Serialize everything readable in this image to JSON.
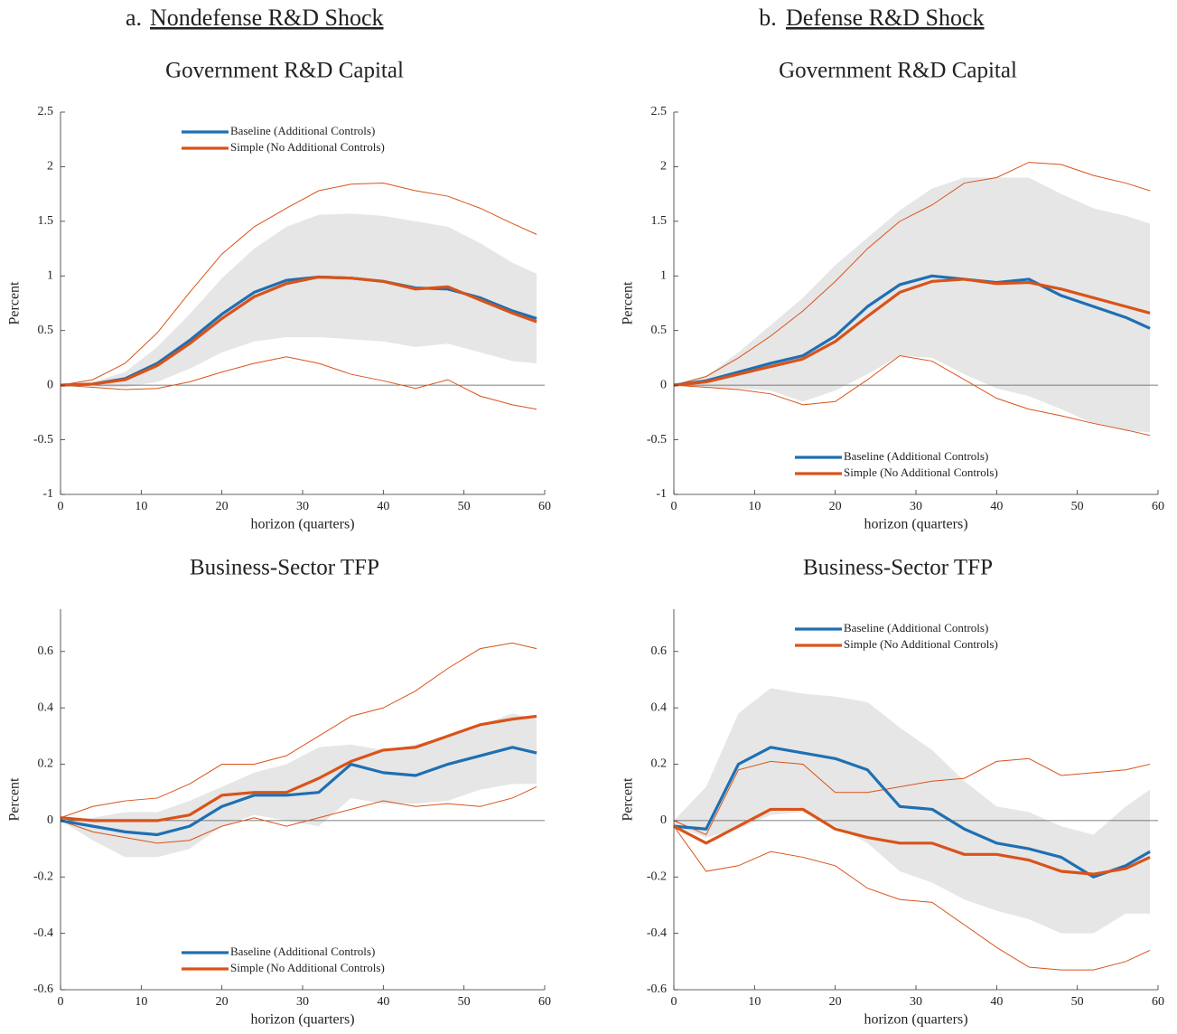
{
  "columns": [
    {
      "letter": "a.",
      "title": "Nondefense R&D Shock"
    },
    {
      "letter": "b.",
      "title": "Defense R&D Shock"
    }
  ],
  "chart_data": [
    {
      "type": "line",
      "title": "Government R&D Capital",
      "xlabel": "horizon (quarters)",
      "ylabel": "Percent",
      "xlim": [
        0,
        60
      ],
      "xticks": [
        0,
        10,
        20,
        30,
        40,
        50,
        60
      ],
      "ylim": [
        -1,
        2.5
      ],
      "yticks": [
        -1,
        -0.5,
        0,
        0.5,
        1,
        1.5,
        2,
        2.5
      ],
      "hline": 0,
      "legend": "top",
      "x": [
        0,
        4,
        8,
        12,
        16,
        20,
        24,
        28,
        32,
        36,
        40,
        44,
        48,
        52,
        56,
        59
      ],
      "series": [
        {
          "name": "Baseline (Additional Controls)",
          "color": "#1f6fb2",
          "values": [
            0,
            0.01,
            0.06,
            0.2,
            0.41,
            0.65,
            0.85,
            0.96,
            0.99,
            0.98,
            0.95,
            0.89,
            0.88,
            0.8,
            0.68,
            0.61
          ]
        },
        {
          "name": "Simple (No Additional Controls)",
          "color": "#d95319",
          "values": [
            0,
            0.01,
            0.05,
            0.18,
            0.38,
            0.61,
            0.81,
            0.93,
            0.99,
            0.98,
            0.95,
            0.88,
            0.9,
            0.78,
            0.66,
            0.58
          ]
        }
      ],
      "band": {
        "color": "#e6e6e6",
        "upper": [
          0,
          0.03,
          0.12,
          0.35,
          0.65,
          0.98,
          1.25,
          1.45,
          1.56,
          1.57,
          1.55,
          1.5,
          1.45,
          1.3,
          1.12,
          1.02
        ],
        "lower": [
          0,
          -0.01,
          -0.02,
          0.03,
          0.15,
          0.3,
          0.4,
          0.44,
          0.44,
          0.42,
          0.4,
          0.35,
          0.38,
          0.3,
          0.22,
          0.2
        ]
      },
      "ci": {
        "color": "#d95319",
        "upper": [
          0,
          0.05,
          0.2,
          0.48,
          0.85,
          1.2,
          1.45,
          1.62,
          1.78,
          1.84,
          1.85,
          1.78,
          1.73,
          1.62,
          1.48,
          1.38
        ],
        "lower": [
          0,
          -0.02,
          -0.04,
          -0.03,
          0.03,
          0.12,
          0.2,
          0.26,
          0.2,
          0.1,
          0.04,
          -0.03,
          0.05,
          -0.1,
          -0.18,
          -0.22
        ]
      }
    },
    {
      "type": "line",
      "title": "Government R&D Capital",
      "xlabel": "horizon (quarters)",
      "ylabel": "Percent",
      "xlim": [
        0,
        60
      ],
      "xticks": [
        0,
        10,
        20,
        30,
        40,
        50,
        60
      ],
      "ylim": [
        -1,
        2.5
      ],
      "yticks": [
        -1,
        -0.5,
        0,
        0.5,
        1,
        1.5,
        2,
        2.5
      ],
      "hline": 0,
      "legend": "bottom",
      "x": [
        0,
        4,
        8,
        12,
        16,
        20,
        24,
        28,
        32,
        36,
        40,
        44,
        48,
        52,
        56,
        59
      ],
      "series": [
        {
          "name": "Baseline (Additional Controls)",
          "color": "#1f6fb2",
          "values": [
            0,
            0.04,
            0.12,
            0.2,
            0.27,
            0.45,
            0.72,
            0.92,
            1.0,
            0.97,
            0.94,
            0.97,
            0.82,
            0.72,
            0.62,
            0.52
          ]
        },
        {
          "name": "Simple (No Additional Controls)",
          "color": "#d95319",
          "values": [
            0,
            0.03,
            0.1,
            0.17,
            0.24,
            0.4,
            0.63,
            0.85,
            0.95,
            0.97,
            0.93,
            0.94,
            0.88,
            0.8,
            0.72,
            0.66
          ]
        }
      ],
      "band": {
        "color": "#e6e6e6",
        "upper": [
          0,
          0.08,
          0.3,
          0.55,
          0.8,
          1.1,
          1.35,
          1.6,
          1.8,
          1.9,
          1.9,
          1.9,
          1.75,
          1.62,
          1.55,
          1.48
        ],
        "lower": [
          0,
          -0.02,
          -0.03,
          -0.05,
          -0.15,
          -0.05,
          0.1,
          0.27,
          0.25,
          0.1,
          -0.03,
          -0.1,
          -0.22,
          -0.35,
          -0.42,
          -0.43
        ]
      },
      "ci": {
        "color": "#d95319",
        "upper": [
          0,
          0.08,
          0.25,
          0.45,
          0.68,
          0.95,
          1.25,
          1.5,
          1.65,
          1.85,
          1.9,
          2.04,
          2.02,
          1.92,
          1.85,
          1.78
        ],
        "lower": [
          0,
          -0.02,
          -0.04,
          -0.08,
          -0.18,
          -0.15,
          0.05,
          0.27,
          0.22,
          0.05,
          -0.12,
          -0.22,
          -0.28,
          -0.35,
          -0.41,
          -0.46
        ]
      }
    },
    {
      "type": "line",
      "title": "Business-Sector TFP",
      "xlabel": "horizon (quarters)",
      "ylabel": "Percent",
      "xlim": [
        0,
        60
      ],
      "xticks": [
        0,
        10,
        20,
        30,
        40,
        50,
        60
      ],
      "ylim": [
        -0.6,
        0.75
      ],
      "yticks": [
        -0.6,
        -0.4,
        -0.2,
        0,
        0.2,
        0.4,
        0.6
      ],
      "hline": 0,
      "legend": "bottom",
      "x": [
        0,
        4,
        8,
        12,
        16,
        20,
        24,
        28,
        32,
        36,
        40,
        44,
        48,
        52,
        56,
        59
      ],
      "series": [
        {
          "name": "Baseline (Additional Controls)",
          "color": "#1f6fb2",
          "values": [
            0,
            -0.02,
            -0.04,
            -0.05,
            -0.02,
            0.05,
            0.09,
            0.09,
            0.1,
            0.2,
            0.17,
            0.16,
            0.2,
            0.23,
            0.26,
            0.24
          ]
        },
        {
          "name": "Simple (No Additional Controls)",
          "color": "#d95319",
          "values": [
            0.01,
            0,
            0,
            0,
            0.02,
            0.09,
            0.1,
            0.1,
            0.15,
            0.21,
            0.25,
            0.26,
            0.3,
            0.34,
            0.36,
            0.37
          ]
        }
      ],
      "band": {
        "color": "#e6e6e6",
        "upper": [
          0,
          0.01,
          0.03,
          0.03,
          0.07,
          0.12,
          0.17,
          0.2,
          0.26,
          0.27,
          0.25,
          0.27,
          0.3,
          0.34,
          0.38,
          0.36
        ],
        "lower": [
          0,
          -0.07,
          -0.13,
          -0.13,
          -0.1,
          -0.02,
          0.02,
          0,
          -0.02,
          0.08,
          0.06,
          0.06,
          0.07,
          0.11,
          0.13,
          0.13
        ]
      },
      "ci": {
        "color": "#d95319",
        "upper": [
          0.01,
          0.05,
          0.07,
          0.08,
          0.13,
          0.2,
          0.2,
          0.23,
          0.3,
          0.37,
          0.4,
          0.46,
          0.54,
          0.61,
          0.63,
          0.61
        ],
        "lower": [
          0,
          -0.04,
          -0.06,
          -0.08,
          -0.07,
          -0.02,
          0.01,
          -0.02,
          0.01,
          0.04,
          0.07,
          0.05,
          0.06,
          0.05,
          0.08,
          0.12
        ]
      }
    },
    {
      "type": "line",
      "title": "Business-Sector TFP",
      "xlabel": "horizon (quarters)",
      "ylabel": "Percent",
      "xlim": [
        0,
        60
      ],
      "xticks": [
        0,
        10,
        20,
        30,
        40,
        50,
        60
      ],
      "ylim": [
        -0.6,
        0.75
      ],
      "yticks": [
        -0.6,
        -0.4,
        -0.2,
        0,
        0.2,
        0.4,
        0.6
      ],
      "hline": 0,
      "legend": "top",
      "x": [
        0,
        4,
        8,
        12,
        16,
        20,
        24,
        28,
        32,
        36,
        40,
        44,
        48,
        52,
        56,
        59
      ],
      "series": [
        {
          "name": "Baseline (Additional Controls)",
          "color": "#1f6fb2",
          "values": [
            -0.02,
            -0.03,
            0.2,
            0.26,
            0.24,
            0.22,
            0.18,
            0.05,
            0.04,
            -0.03,
            -0.08,
            -0.1,
            -0.13,
            -0.2,
            -0.16,
            -0.11
          ]
        },
        {
          "name": "Simple (No Additional Controls)",
          "color": "#d95319",
          "values": [
            -0.02,
            -0.08,
            -0.02,
            0.04,
            0.04,
            -0.03,
            -0.06,
            -0.08,
            -0.08,
            -0.12,
            -0.12,
            -0.14,
            -0.18,
            -0.19,
            -0.17,
            -0.13
          ]
        }
      ],
      "band": {
        "color": "#e6e6e6",
        "upper": [
          0,
          0.12,
          0.38,
          0.47,
          0.45,
          0.44,
          0.42,
          0.33,
          0.25,
          0.14,
          0.05,
          0.03,
          -0.02,
          -0.05,
          0.05,
          0.11
        ],
        "lower": [
          -0.02,
          -0.06,
          -0.03,
          0.02,
          0.03,
          -0.02,
          -0.08,
          -0.18,
          -0.22,
          -0.28,
          -0.32,
          -0.35,
          -0.4,
          -0.4,
          -0.33,
          -0.33
        ]
      },
      "ci": {
        "color": "#d95319",
        "upper": [
          0,
          -0.05,
          0.18,
          0.21,
          0.2,
          0.1,
          0.1,
          0.12,
          0.14,
          0.15,
          0.21,
          0.22,
          0.16,
          0.17,
          0.18,
          0.2
        ],
        "lower": [
          -0.02,
          -0.18,
          -0.16,
          -0.11,
          -0.13,
          -0.16,
          -0.24,
          -0.28,
          -0.29,
          -0.37,
          -0.45,
          -0.52,
          -0.53,
          -0.53,
          -0.5,
          -0.46
        ]
      }
    }
  ]
}
